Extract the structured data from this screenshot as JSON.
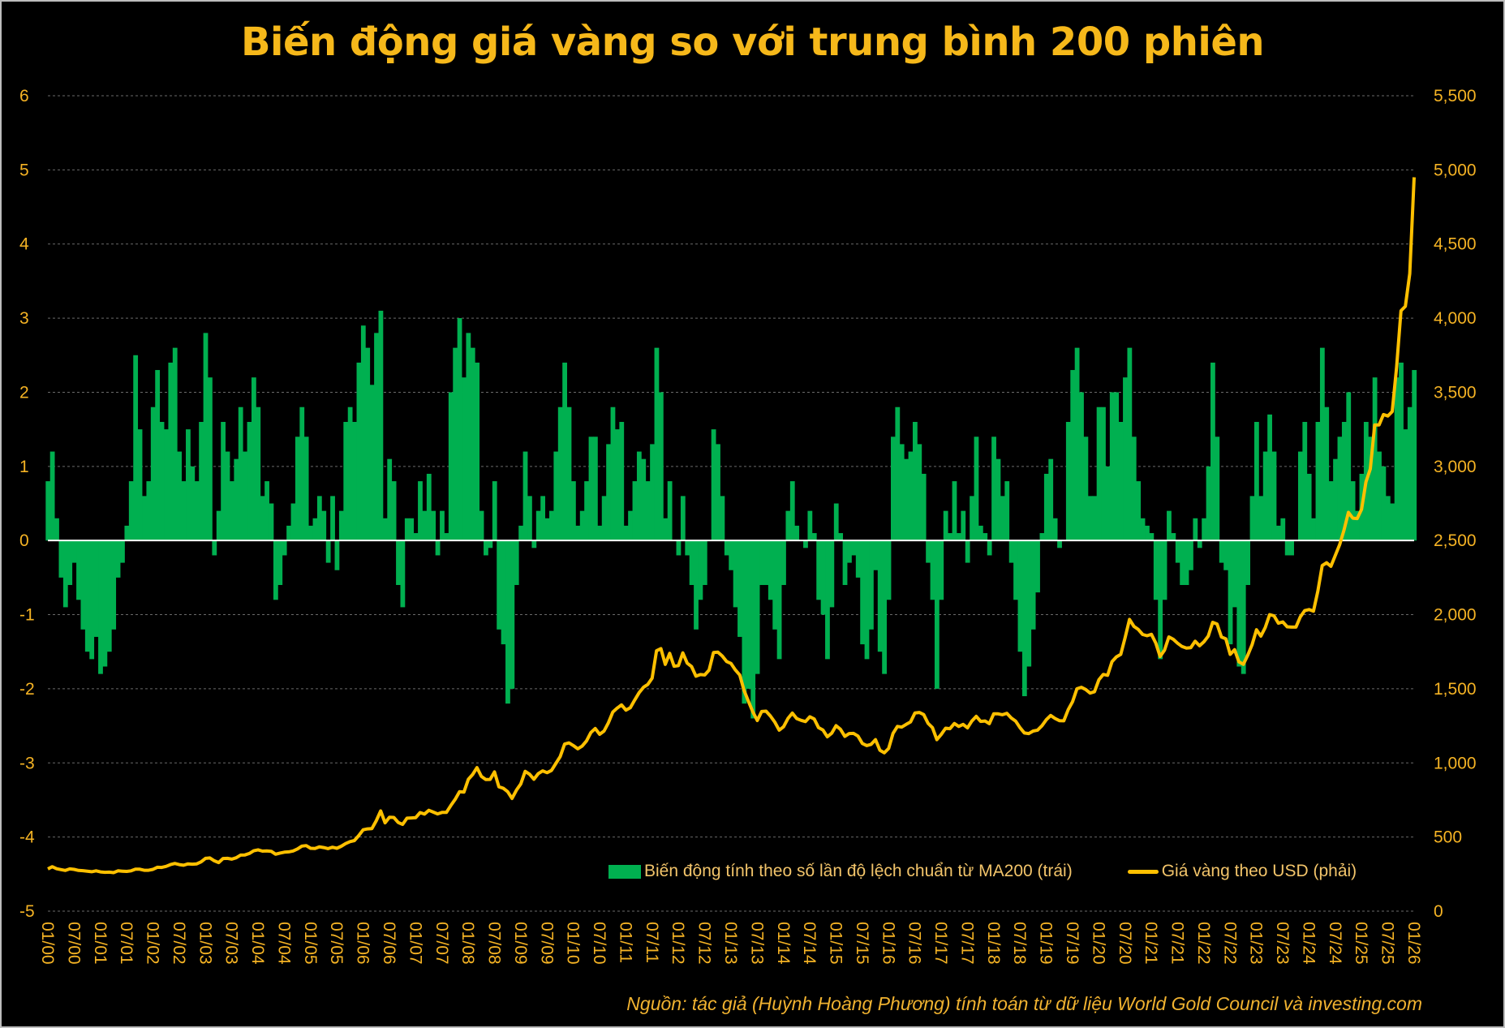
{
  "chart_data": {
    "type": "bar+line",
    "title": "Biến động giá vàng so với trung bình 200 phiên",
    "source": "Nguồn: tác giả (Huỳnh Hoàng Phương) tính toán từ dữ liệu World Gold Council và investing.com",
    "x_start": "01/2000",
    "x_frequency": "monthly",
    "x_tick_labels": [
      "01/00",
      "07/00",
      "01/01",
      "07/01",
      "01/02",
      "07/02",
      "01/03",
      "07/03",
      "01/04",
      "07/04",
      "01/05",
      "07/05",
      "01/06",
      "07/06",
      "01/07",
      "07/07",
      "01/08",
      "07/08",
      "01/09",
      "07/09",
      "01/10",
      "07/10",
      "01/11",
      "07/11",
      "01/12",
      "07/12",
      "01/13",
      "07/13",
      "01/14",
      "07/14",
      "01/15",
      "07/15",
      "01/16",
      "07/16",
      "01/17",
      "07/17",
      "01/18",
      "07/18",
      "01/19",
      "07/19",
      "01/20",
      "07/20",
      "01/21",
      "07/21",
      "01/22",
      "07/22",
      "01/23",
      "07/23",
      "01/24",
      "07/24",
      "01/25",
      "07/25",
      "01/26"
    ],
    "left_axis": {
      "ylim": [
        -5,
        6
      ],
      "ticks": [
        "-5",
        "-4",
        "-3",
        "-2",
        "-1",
        "0",
        "1",
        "2",
        "3",
        "4",
        "5",
        "6"
      ]
    },
    "right_axis": {
      "ylim": [
        0,
        5500
      ],
      "ticks": [
        "0",
        "500",
        "1,000",
        "1,500",
        "2,000",
        "2,500",
        "3,000",
        "3,500",
        "4,000",
        "4,500",
        "5,000",
        "5,500"
      ]
    },
    "grid": true,
    "legend_position": "bottom-right",
    "colors": {
      "bars": "#00b050",
      "line": "#ffc000",
      "text": "#f5b324"
    },
    "series": [
      {
        "name": "Biến động tính theo số lần độ lệch chuẩn từ MA200 (trái)",
        "axis": "left",
        "type": "bar",
        "values": [
          0.8,
          1.2,
          0.3,
          -0.5,
          -0.9,
          -0.6,
          -0.3,
          -0.8,
          -1.2,
          -1.5,
          -1.6,
          -1.3,
          -1.8,
          -1.7,
          -1.5,
          -1.2,
          -0.5,
          -0.3,
          0.2,
          0.8,
          2.5,
          1.5,
          0.6,
          0.8,
          1.8,
          2.3,
          1.6,
          1.5,
          2.4,
          2.6,
          1.2,
          0.8,
          1.5,
          1.0,
          0.8,
          1.6,
          2.8,
          2.2,
          -0.2,
          0.4,
          1.6,
          1.2,
          0.8,
          1.1,
          1.8,
          1.2,
          1.6,
          2.2,
          1.8,
          0.6,
          0.8,
          0.5,
          -0.8,
          -0.6,
          -0.2,
          0.2,
          0.5,
          1.4,
          1.8,
          1.4,
          0.2,
          0.3,
          0.6,
          0.4,
          -0.3,
          0.6,
          -0.4,
          0.4,
          1.6,
          1.8,
          1.6,
          2.4,
          2.9,
          2.6,
          2.1,
          2.8,
          3.1,
          0.3,
          1.1,
          0.8,
          -0.6,
          -0.9,
          0.3,
          0.3,
          0.1,
          0.8,
          0.4,
          0.9,
          0.4,
          -0.2,
          0.4,
          0.1,
          2.0,
          2.6,
          3.0,
          2.2,
          2.8,
          2.6,
          2.4,
          0.4,
          -0.2,
          -0.1,
          0.8,
          -1.2,
          -1.4,
          -2.2,
          -2.0,
          -0.6,
          0.2,
          1.2,
          0.6,
          -0.1,
          0.4,
          0.6,
          0.3,
          0.4,
          1.2,
          1.8,
          2.4,
          1.8,
          0.8,
          0.2,
          0.4,
          0.8,
          1.4,
          1.4,
          0.2,
          0.6,
          1.3,
          1.8,
          1.5,
          1.6,
          0.2,
          0.4,
          0.8,
          1.2,
          1.1,
          0.8,
          1.3,
          2.6,
          2.0,
          0.3,
          0.8,
          0.0,
          -0.2,
          0.6,
          -0.2,
          -0.6,
          -1.2,
          -0.8,
          -0.6,
          0.0,
          1.5,
          1.3,
          0.6,
          -0.2,
          -0.4,
          -0.9,
          -1.3,
          -2.2,
          -2.0,
          -2.4,
          -1.8,
          -0.6,
          -0.6,
          -0.8,
          -1.2,
          -1.6,
          -0.6,
          0.4,
          0.8,
          0.2,
          0.0,
          -0.1,
          0.4,
          0.1,
          -0.8,
          -1.0,
          -1.6,
          -0.9,
          0.5,
          0.1,
          -0.6,
          -0.3,
          -0.2,
          -0.5,
          -1.4,
          -1.6,
          -1.2,
          -0.4,
          -1.5,
          -1.8,
          -0.8,
          1.4,
          1.8,
          1.3,
          1.1,
          1.2,
          1.6,
          1.3,
          0.9,
          -0.3,
          -0.8,
          -2.0,
          -0.8,
          0.4,
          0.1,
          0.8,
          0.1,
          0.4,
          -0.3,
          0.6,
          1.4,
          0.2,
          0.1,
          -0.2,
          1.4,
          1.1,
          0.6,
          0.8,
          -0.3,
          -0.8,
          -1.5,
          -2.1,
          -1.7,
          -1.2,
          -0.7,
          0.1,
          0.9,
          1.1,
          0.3,
          -0.1,
          0.0,
          1.6,
          2.3,
          2.6,
          2.0,
          1.4,
          0.6,
          0.6,
          1.8,
          1.8,
          1.0,
          2.0,
          2.0,
          1.6,
          2.2,
          2.6,
          1.4,
          0.8,
          0.3,
          0.2,
          0.1,
          -0.8,
          -1.6,
          -0.8,
          0.4,
          0.1,
          -0.3,
          -0.6,
          -0.6,
          -0.4,
          0.3,
          -0.1,
          0.3,
          1.0,
          2.4,
          1.4,
          -0.3,
          -0.4,
          -1.4,
          -0.9,
          -1.7,
          -1.8,
          -0.6,
          0.6,
          1.6,
          0.6,
          1.2,
          1.7,
          1.2,
          0.2,
          0.3,
          -0.2,
          -0.2,
          0.0,
          1.2,
          1.6,
          0.9,
          0.3,
          1.6,
          2.6,
          1.8,
          0.8,
          1.1,
          1.4,
          1.6,
          2.0,
          0.8,
          0.4,
          0.9,
          1.6,
          1.4,
          2.2,
          1.2,
          1.0,
          0.6,
          0.5,
          2.2,
          2.4,
          1.5,
          1.8,
          2.3
        ]
      },
      {
        "name": "Giá vàng theo USD (phải)",
        "axis": "right",
        "type": "line",
        "values": [
          285,
          300,
          286,
          280,
          275,
          285,
          282,
          275,
          273,
          270,
          266,
          272,
          265,
          262,
          263,
          260,
          272,
          270,
          268,
          272,
          283,
          283,
          276,
          276,
          282,
          296,
          295,
          302,
          314,
          322,
          314,
          310,
          319,
          317,
          319,
          333,
          356,
          359,
          340,
          328,
          355,
          356,
          351,
          360,
          378,
          379,
          389,
          407,
          414,
          405,
          406,
          404,
          384,
          392,
          398,
          400,
          406,
          420,
          439,
          442,
          424,
          423,
          434,
          429,
          422,
          431,
          424,
          438,
          456,
          469,
          476,
          510,
          549,
          555,
          557,
          610,
          676,
          596,
          633,
          632,
          598,
          585,
          627,
          629,
          631,
          665,
          655,
          680,
          668,
          656,
          666,
          666,
          712,
          754,
          806,
          803,
          889,
          922,
          968,
          909,
          888,
          889,
          939,
          839,
          829,
          806,
          760,
          816,
          858,
          943,
          924,
          890,
          928,
          946,
          934,
          949,
          996,
          1043,
          1127,
          1135,
          1117,
          1095,
          1113,
          1148,
          1205,
          1232,
          1193,
          1215,
          1271,
          1343,
          1370,
          1391,
          1356,
          1372,
          1424,
          1473,
          1510,
          1529,
          1572,
          1756,
          1771,
          1665,
          1739,
          1652,
          1656,
          1742,
          1673,
          1650,
          1585,
          1596,
          1593,
          1626,
          1744,
          1747,
          1721,
          1684,
          1671,
          1627,
          1593,
          1487,
          1414,
          1343,
          1286,
          1347,
          1349,
          1316,
          1275,
          1221,
          1244,
          1300,
          1336,
          1299,
          1287,
          1279,
          1311,
          1296,
          1238,
          1222,
          1176,
          1200,
          1251,
          1227,
          1179,
          1198,
          1199,
          1181,
          1131,
          1117,
          1125,
          1157,
          1086,
          1068,
          1097,
          1199,
          1246,
          1242,
          1260,
          1276,
          1337,
          1340,
          1326,
          1267,
          1238,
          1157,
          1192,
          1234,
          1231,
          1266,
          1246,
          1260,
          1236,
          1283,
          1314,
          1280,
          1283,
          1265,
          1331,
          1331,
          1325,
          1335,
          1303,
          1282,
          1238,
          1202,
          1198,
          1215,
          1221,
          1250,
          1291,
          1320,
          1300,
          1285,
          1284,
          1359,
          1413,
          1500,
          1510,
          1495,
          1471,
          1480,
          1560,
          1597,
          1591,
          1683,
          1715,
          1732,
          1846,
          1968,
          1921,
          1900,
          1866,
          1858,
          1867,
          1808,
          1718,
          1760,
          1850,
          1834,
          1807,
          1785,
          1775,
          1777,
          1821,
          1790,
          1817,
          1856,
          1948,
          1937,
          1849,
          1837,
          1732,
          1764,
          1681,
          1665,
          1726,
          1798,
          1898,
          1855,
          1913,
          2000,
          1992,
          1942,
          1951,
          1918,
          1916,
          1916,
          1985,
          2027,
          2034,
          2023,
          2158,
          2331,
          2350,
          2326,
          2399,
          2472,
          2571,
          2690,
          2651,
          2648,
          2710,
          2895,
          2983,
          3280,
          3280,
          3350,
          3340,
          3370,
          3670,
          4050,
          4080,
          4300,
          4950
        ]
      }
    ]
  }
}
